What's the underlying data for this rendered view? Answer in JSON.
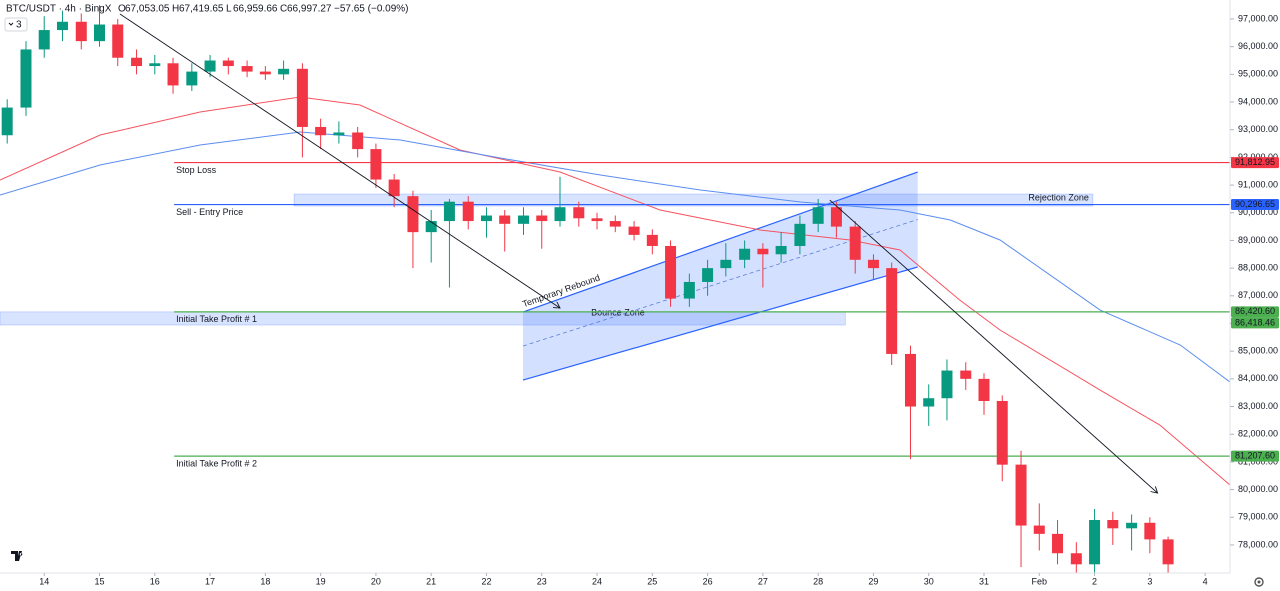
{
  "chart_data": {
    "type": "candlestick",
    "title": "BTC/USDT · 4h · BingX",
    "ohlc": [
      {
        "label": "O",
        "value": "67,053.05"
      },
      {
        "label": "H",
        "value": "67,419.65"
      },
      {
        "label": "L",
        "value": "66,959.66"
      },
      {
        "label": "C",
        "value": "66,997.27"
      }
    ],
    "change": "−57.65 (−0.09%)",
    "indicator_count": "3",
    "up_color": "#089981",
    "down_color": "#f23645",
    "x": [
      13.33,
      13.67,
      14.0,
      14.33,
      14.67,
      15.0,
      15.33,
      15.67,
      16.0,
      16.33,
      16.67,
      17.0,
      17.33,
      17.67,
      18.0,
      18.33,
      18.67,
      19.0,
      19.33,
      19.67,
      20.0,
      20.33,
      20.67,
      21.0,
      21.33,
      21.67,
      22.0,
      22.33,
      22.67,
      23.0,
      23.33,
      23.67,
      24.0,
      24.33,
      24.67,
      25.0,
      25.33,
      25.67,
      26.0,
      26.33,
      26.67,
      27.0,
      27.33,
      27.67,
      28.0,
      28.33,
      28.67,
      29.0,
      29.33,
      29.67,
      30.0,
      30.33,
      30.67,
      31.0,
      31.33,
      31.67,
      32.0,
      32.33,
      32.67,
      33.0,
      33.33,
      33.67,
      34.0,
      34.33
    ],
    "open": [
      92800,
      93800,
      95900,
      96600,
      96900,
      96200,
      96800,
      95600,
      95300,
      95400,
      94600,
      95100,
      95500,
      95300,
      95100,
      95000,
      95200,
      93100,
      92800,
      92900,
      92300,
      91200,
      90600,
      89300,
      89700,
      90400,
      89700,
      89900,
      89600,
      89900,
      89700,
      90200,
      89800,
      89700,
      89500,
      89200,
      88800,
      86900,
      87500,
      88000,
      88300,
      88700,
      88500,
      88800,
      89600,
      90200,
      89500,
      88300,
      88000,
      84900,
      83000,
      83300,
      84300,
      84000,
      83200,
      80900,
      78700,
      78400,
      77700,
      77300,
      78900,
      78600,
      78800,
      78200
    ],
    "high": [
      94100,
      96200,
      97100,
      97300,
      97200,
      97500,
      97000,
      95900,
      95700,
      95600,
      95400,
      95700,
      95600,
      95500,
      95300,
      95500,
      95400,
      93400,
      93300,
      93100,
      92500,
      91400,
      90800,
      90100,
      90500,
      90600,
      90200,
      90100,
      90200,
      90100,
      91300,
      90400,
      90000,
      89900,
      89700,
      89400,
      89000,
      87800,
      88300,
      88900,
      89000,
      88900,
      89300,
      89900,
      90500,
      90400,
      89700,
      88500,
      88200,
      85200,
      83800,
      84700,
      84600,
      84200,
      83400,
      81400,
      79500,
      78900,
      78100,
      79300,
      79200,
      79100,
      79000,
      78300
    ],
    "low": [
      92500,
      93500,
      95600,
      96200,
      95900,
      96000,
      95300,
      95000,
      95000,
      94300,
      94400,
      94900,
      95000,
      94900,
      94800,
      94800,
      92000,
      92300,
      92500,
      92000,
      90900,
      90200,
      88000,
      88200,
      87300,
      89400,
      89100,
      88600,
      89200,
      88700,
      89500,
      89500,
      89400,
      89300,
      89000,
      88500,
      86600,
      86600,
      87000,
      87700,
      88000,
      87300,
      88200,
      88500,
      89300,
      89100,
      87800,
      87600,
      84500,
      81100,
      82300,
      82500,
      83600,
      82700,
      80300,
      77200,
      77800,
      77300,
      77000,
      77000,
      78000,
      77800,
      77700,
      77000
    ],
    "close": [
      93800,
      95900,
      96600,
      96900,
      96200,
      96800,
      95600,
      95300,
      95400,
      94600,
      95100,
      95500,
      95300,
      95100,
      95000,
      95200,
      93100,
      92800,
      92900,
      92300,
      91200,
      90600,
      89300,
      89700,
      90400,
      89700,
      89900,
      89600,
      89900,
      89700,
      90200,
      89800,
      89700,
      89500,
      89200,
      88800,
      86900,
      87500,
      88000,
      88300,
      88700,
      88500,
      88800,
      89600,
      90200,
      89500,
      88300,
      88000,
      84900,
      83000,
      83300,
      84300,
      84000,
      83200,
      80900,
      78700,
      78400,
      77700,
      77300,
      78900,
      78600,
      78800,
      78200,
      77300
    ],
    "moving_averages": [
      {
        "color": "#f7525f",
        "x": [
          13.2,
          15.01,
          16.82,
          18.63,
          19.71,
          21.52,
          23.33,
          25.14,
          26.95,
          28.58,
          29.48,
          30.56,
          31.29,
          33.1,
          34.18,
          35.45
        ],
        "values": [
          91183,
          92809,
          93640,
          94182,
          93893,
          92267,
          91472,
          90099,
          89377,
          89015,
          88654,
          86848,
          85764,
          83596,
          82331,
          80164
        ]
      },
      {
        "color": "#5b8def",
        "x": [
          13.2,
          15.01,
          16.82,
          18.63,
          20.44,
          22.25,
          24.06,
          25.87,
          27.68,
          29.48,
          30.39,
          31.29,
          33.1,
          34.55,
          35.45
        ],
        "values": [
          90641,
          91725,
          92448,
          92917,
          92628,
          91978,
          91364,
          90822,
          90388,
          90099,
          89738,
          89016,
          86486,
          85222,
          83885
        ]
      }
    ],
    "levels": [
      {
        "name": "Stop Loss",
        "value": 91812.95,
        "value_label": "91,812.95",
        "color": "#f23645",
        "x_start": 16.35
      },
      {
        "name": "Sell - Entry Price",
        "value": 90296.65,
        "value_label": "90,296.65",
        "color": "#2962ff",
        "x_start": 16.35
      },
      {
        "name": "Initial Take Profit # 1",
        "value": 86420.6,
        "value_label": "86,420.60",
        "color": "#4caf50",
        "x_start": 16.35
      },
      {
        "name": "Initial Take Profit # 2",
        "value": 81207.6,
        "value_label": "81,207.60",
        "color": "#4caf50",
        "x_start": 16.35
      }
    ],
    "zones": [
      {
        "name": "Rejection Zone",
        "x": [
          18.52,
          32.97
        ],
        "range": [
          90244,
          90677
        ]
      },
      {
        "name": "Bounce Zone",
        "x": [
          13.2,
          28.49
        ],
        "range": [
          85944,
          86418.46
        ],
        "value_label": "86,418.46",
        "color": "#4caf50"
      }
    ],
    "channel": {
      "name": "Temporary Rebound",
      "x": [
        22.66,
        29.8
      ],
      "lower": [
        83957,
        88040
      ],
      "upper": [
        86413,
        91472
      ]
    },
    "arrows": [
      {
        "x": [
          15.37,
          23.33
        ],
        "y": [
          97180,
          86558
        ]
      },
      {
        "x": [
          28.21,
          34.14
        ],
        "y": [
          90460,
          79874
        ]
      }
    ],
    "xlim": [
      13.2,
      35.45
    ],
    "ylim": [
      76986,
      97686
    ],
    "xticks": [
      14,
      15,
      16,
      17,
      18,
      19,
      20,
      21,
      22,
      23,
      24,
      25,
      26,
      27,
      28,
      29,
      30,
      31,
      {
        "value": 32,
        "label": "Feb"
      },
      {
        "value": 33,
        "label": "2"
      },
      {
        "value": 34,
        "label": "3"
      },
      {
        "value": 35,
        "label": "4"
      }
    ],
    "yticks": [
      {
        "value": 78000,
        "label": "78,000.00"
      },
      {
        "value": 79000,
        "label": "79,000.00"
      },
      {
        "value": 80000,
        "label": "80,000.00"
      },
      {
        "value": 81000,
        "label": "81,000.00"
      },
      {
        "value": 82000,
        "label": "82,000.00"
      },
      {
        "value": 83000,
        "label": "83,000.00"
      },
      {
        "value": 84000,
        "label": "84,000.00"
      },
      {
        "value": 85000,
        "label": "85,000.00"
      },
      {
        "value": 86000,
        "label": "86,000.00"
      },
      {
        "value": 87000,
        "label": "87,000.00"
      },
      {
        "value": 88000,
        "label": "88,000.00"
      },
      {
        "value": 89000,
        "label": "89,000.00"
      },
      {
        "value": 90000,
        "label": "90,000.00"
      },
      {
        "value": 91000,
        "label": "91,000.00"
      },
      {
        "value": 92000,
        "label": "92,000.00"
      },
      {
        "value": 93000,
        "label": "93,000.00"
      },
      {
        "value": 94000,
        "label": "94,000.00"
      },
      {
        "value": 95000,
        "label": "95,000.00"
      },
      {
        "value": 96000,
        "label": "96,000.00"
      },
      {
        "value": 97000,
        "label": "97,000.00"
      }
    ],
    "grid": false
  }
}
